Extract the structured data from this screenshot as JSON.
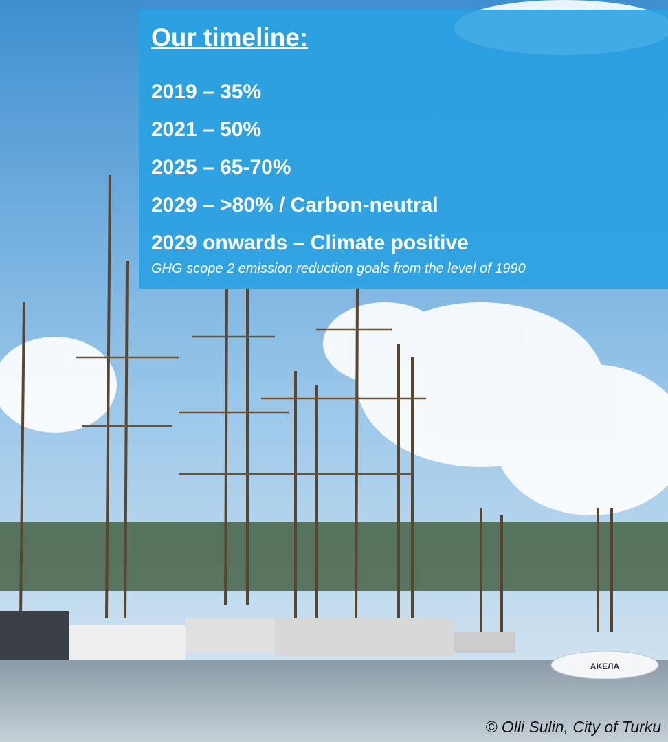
{
  "timeline": {
    "title": "Our timeline:",
    "items": [
      "2019 – 35%",
      "2021 – 50%",
      "2025 – 65-70%",
      "2029 – >80% / Carbon-neutral",
      "2029 onwards – Climate positive"
    ],
    "note": "GHG scope 2 emission reduction goals from the level of 1990"
  },
  "photo": {
    "boat_name": "AKEЛA",
    "credit": "© Olli Sulin, City of Turku"
  }
}
